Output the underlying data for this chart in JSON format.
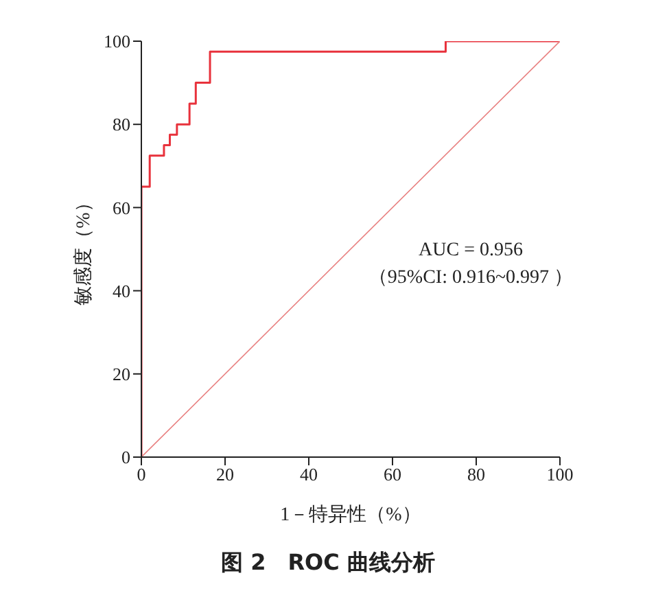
{
  "chart_data": {
    "type": "line",
    "title": "图 2　ROC 曲线分析",
    "xlabel": "1－特异性（%）",
    "ylabel": "敏感度（%）",
    "annotations": [
      "AUC = 0.956",
      "（95%CI: 0.916~0.997 ）"
    ],
    "series": [
      {
        "color": "#e8323c",
        "x": [
          0,
          0,
          2,
          2,
          5.4,
          5.4,
          6.8,
          6.8,
          8.5,
          8.5,
          11.5,
          11.5,
          13,
          13,
          16.4,
          16.4,
          72.7,
          72.7,
          100
        ],
        "values": [
          0,
          65,
          65,
          72.5,
          72.5,
          75,
          75,
          77.5,
          77.5,
          80,
          80,
          85,
          85,
          90,
          90,
          97.5,
          97.5,
          100,
          100
        ]
      },
      {
        "color": "#e88080",
        "x": [
          0,
          100
        ],
        "values": [
          0,
          100
        ]
      }
    ],
    "xlim": [
      0,
      100
    ],
    "ylim": [
      0,
      100
    ],
    "xticks": [
      0,
      20,
      40,
      60,
      80,
      100
    ],
    "yticks": [
      0,
      20,
      40,
      60,
      80,
      100
    ],
    "grid": false,
    "marker": "none",
    "line_style": "solid"
  }
}
